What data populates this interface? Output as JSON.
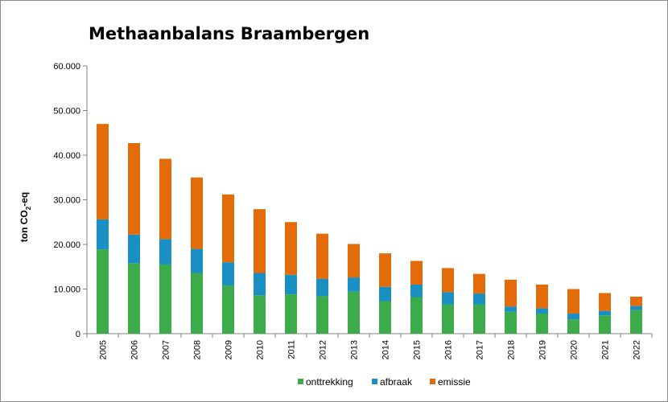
{
  "chart_data": {
    "type": "bar",
    "stacked": true,
    "title": "Methaanbalans Braambergen",
    "xlabel": "",
    "ylabel": {
      "text": "ton CO",
      "subscript": "2",
      "suffix": "-eq"
    },
    "ylim": [
      0,
      60000
    ],
    "yticks": [
      0,
      10000,
      20000,
      30000,
      40000,
      50000,
      60000
    ],
    "ytick_labels": [
      "0",
      "10.000",
      "20.000",
      "30.000",
      "40.000",
      "50.000",
      "60.000"
    ],
    "grid": false,
    "legend_position": "bottom",
    "categories": [
      "2005",
      "2006",
      "2007",
      "2008",
      "2009",
      "2010",
      "2011",
      "2012",
      "2013",
      "2014",
      "2015",
      "2016",
      "2017",
      "2018",
      "2019",
      "2020",
      "2021",
      "2022"
    ],
    "series": [
      {
        "name": "onttrekking",
        "color": "#3cab49",
        "values": [
          18900,
          15800,
          15500,
          13600,
          10800,
          8600,
          8800,
          8400,
          9400,
          7300,
          8200,
          6500,
          6500,
          4900,
          4500,
          3200,
          4100,
          5300
        ]
      },
      {
        "name": "afbraak",
        "color": "#1a8fc4",
        "values": [
          6700,
          6400,
          5700,
          5400,
          5200,
          5000,
          4400,
          3900,
          3200,
          3200,
          2800,
          2800,
          2500,
          1200,
          1200,
          1300,
          1000,
          900
        ]
      },
      {
        "name": "emissie",
        "color": "#e36c09",
        "values": [
          21400,
          20500,
          18000,
          16000,
          15200,
          14300,
          11800,
          10100,
          7500,
          7500,
          5300,
          5400,
          4400,
          6000,
          5300,
          5500,
          4000,
          2100
        ]
      }
    ]
  }
}
